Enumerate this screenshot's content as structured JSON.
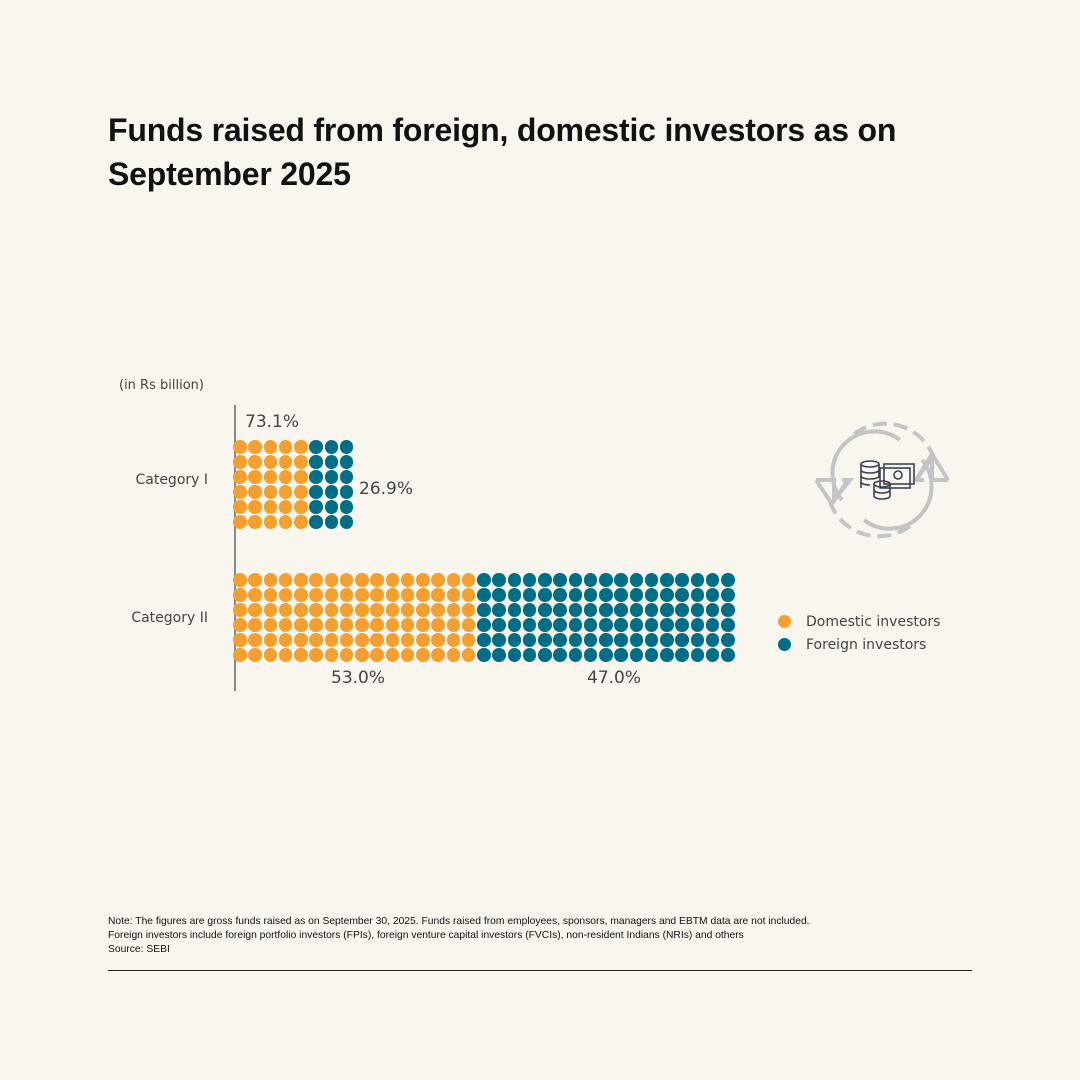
{
  "title": "Funds raised from foreign, domestic investors as on September 2025",
  "unit_label": "(in Rs billion)",
  "colors": {
    "domestic": "#f5a02e",
    "foreign": "#016e87",
    "background": "#f9f6f0"
  },
  "categories": [
    {
      "label": "Category I",
      "domestic_pct_label": "73.1%",
      "foreign_pct_label": "26.9%",
      "domestic_cols": 5,
      "foreign_cols": 3,
      "rows": 6
    },
    {
      "label": "Category II",
      "domestic_pct_label": "53.0%",
      "foreign_pct_label": "47.0%",
      "domestic_cols": 16,
      "foreign_cols": 17,
      "rows": 6
    }
  ],
  "legend": [
    {
      "label": "Domestic investors",
      "color": "#f5a02e"
    },
    {
      "label": "Foreign investors",
      "color": "#016e87"
    }
  ],
  "icon": "money-exchange-cycle-icon",
  "notes": [
    "Note: The figures are gross funds raised as on September 30, 2025. Funds raised from employees, sponsors, managers and EBTM data are not included.",
    "Foreign investors include foreign portfolio investors (FPIs), foreign venture capital investors (FVCIs), non-resident Indians (NRIs) and others",
    "Source: SEBI"
  ],
  "chart_data": {
    "type": "bar",
    "subtype": "waffle-stacked-percentage",
    "title": "Funds raised from foreign, domestic investors as on September 2025",
    "ylabel": "(in Rs billion)",
    "categories": [
      "Category I",
      "Category II"
    ],
    "series": [
      {
        "name": "Domestic investors",
        "values": [
          73.1,
          53.0
        ]
      },
      {
        "name": "Foreign investors",
        "values": [
          26.9,
          47.0
        ]
      }
    ],
    "legend_position": "right",
    "grid": false
  }
}
